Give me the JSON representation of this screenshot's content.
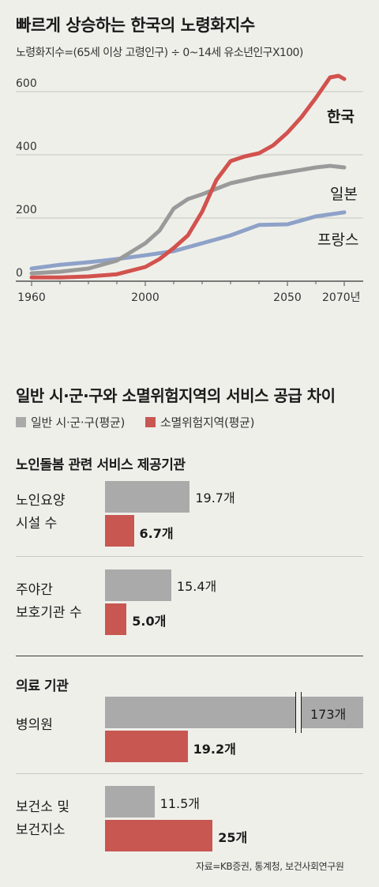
{
  "line_chart_header": {
    "title": "빠르게 상승하는 한국의 노령화지수",
    "subtitle": "노령화지수=(65세 이상 고령인구) ÷ 0~14세 유소년인구X100)"
  },
  "bar_chart_header": {
    "title": "일반 시·군·구와 소멸위험지역의 서비스 공급 차이",
    "legend": [
      {
        "label": "일반 시·군·구(평균)",
        "color": "#aaaaaa"
      },
      {
        "label": "소멸위험지역(평균)",
        "color": "#c85752"
      }
    ]
  },
  "source": "자료=KB증권, 통계청, 보건사회연구원",
  "chart_data": [
    {
      "type": "line",
      "title": "빠르게 상승하는 한국의 노령화지수",
      "subtitle": "노령화지수=(65세 이상 고령인구) ÷ 0~14세 유소년인구X100)",
      "xlim": [
        1960,
        2070
      ],
      "ylim": [
        0,
        600
      ],
      "xticks": [
        {
          "value": 1960,
          "label": "1960"
        },
        {
          "value": 2000,
          "label": "2000"
        },
        {
          "value": 2050,
          "label": "2050"
        },
        {
          "value": 2070,
          "label": "2070년"
        }
      ],
      "yticks": [
        {
          "value": 0,
          "label": "0"
        },
        {
          "value": 200,
          "label": "200"
        },
        {
          "value": 400,
          "label": "400"
        },
        {
          "value": 600,
          "label": "600"
        }
      ],
      "grid": true,
      "series": [
        {
          "name": "프랑스",
          "color": "#8ea2c8",
          "x": [
            1960,
            1970,
            1980,
            1990,
            2000,
            2010,
            2020,
            2030,
            2040,
            2050,
            2060,
            2070
          ],
          "y": [
            40,
            52,
            60,
            70,
            82,
            95,
            120,
            145,
            178,
            180,
            205,
            218
          ]
        },
        {
          "name": "일본",
          "color": "#9a9a9a",
          "x": [
            1960,
            1970,
            1980,
            1990,
            2000,
            2005,
            2010,
            2015,
            2020,
            2030,
            2040,
            2050,
            2060,
            2065,
            2070
          ],
          "y": [
            25,
            30,
            40,
            65,
            120,
            160,
            230,
            260,
            275,
            310,
            330,
            345,
            360,
            365,
            360
          ]
        },
        {
          "name": "한국",
          "color": "#d2524e",
          "x": [
            1960,
            1970,
            1980,
            1990,
            2000,
            2005,
            2010,
            2015,
            2020,
            2025,
            2030,
            2035,
            2040,
            2045,
            2050,
            2055,
            2060,
            2065,
            2068,
            2070
          ],
          "y": [
            12,
            12,
            15,
            22,
            45,
            70,
            105,
            145,
            220,
            320,
            380,
            395,
            405,
            430,
            470,
            520,
            580,
            645,
            650,
            640
          ]
        }
      ]
    },
    {
      "type": "bar",
      "title": "노인돌봄 관련 서비스 제공기관",
      "categories": [
        "노인요양\n시설 수",
        "주야간\n보호기관 수"
      ],
      "series": [
        {
          "name": "일반 시·군·구(평균)",
          "values": [
            19.7,
            15.4
          ],
          "labels": [
            "19.7개",
            "15.4개"
          ]
        },
        {
          "name": "소멸위험지역(평균)",
          "values": [
            6.7,
            5.0
          ],
          "labels": [
            "6.7개",
            "5.0개"
          ]
        }
      ]
    },
    {
      "type": "bar",
      "title": "의료 기관",
      "axis_break": true,
      "categories": [
        "병의원",
        "보건소 및\n보건지소"
      ],
      "series": [
        {
          "name": "일반 시·군·구(평균)",
          "values": [
            173,
            11.5
          ],
          "labels": [
            "173개",
            "11.5개"
          ]
        },
        {
          "name": "소멸위험지역(평균)",
          "values": [
            19.2,
            25
          ],
          "labels": [
            "19.2개",
            "25개"
          ]
        }
      ]
    }
  ]
}
